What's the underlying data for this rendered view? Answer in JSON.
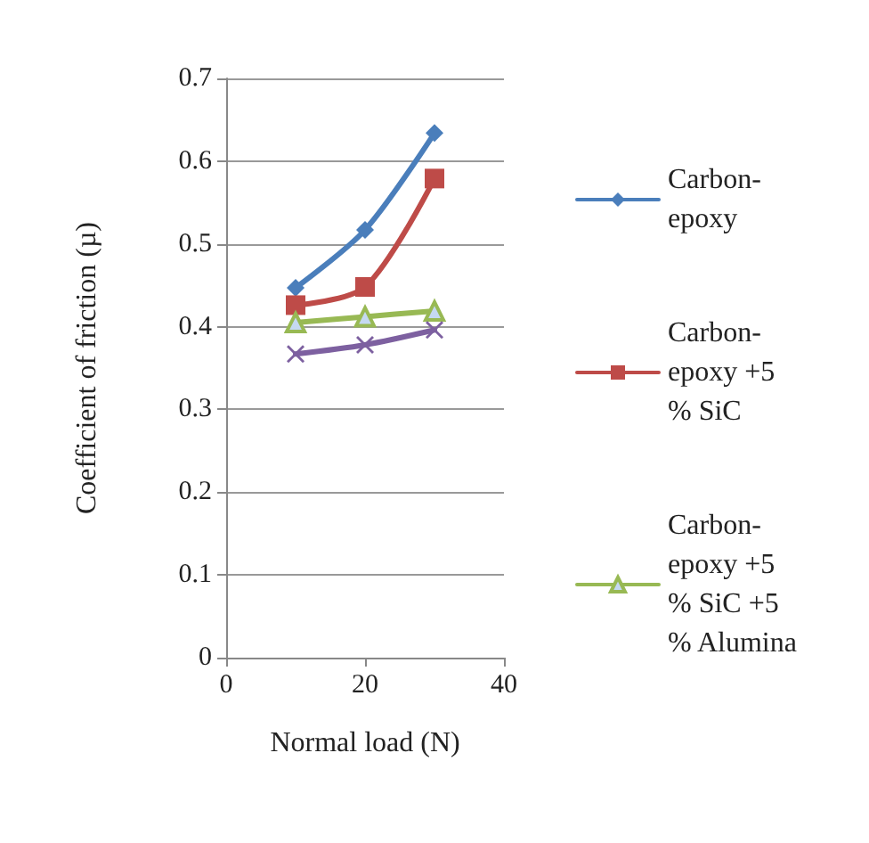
{
  "chart_data": {
    "type": "line",
    "xlabel": "Normal load (N)",
    "ylabel": "Coefficient of friction (µ)",
    "x": [
      10,
      20,
      30
    ],
    "xlim": [
      0,
      40
    ],
    "xticks": [
      0,
      20,
      40
    ],
    "ylim": [
      0,
      0.7
    ],
    "yticks": [
      0,
      0.1,
      0.2,
      0.3,
      0.4,
      0.5,
      0.6,
      0.7
    ],
    "grid": "y",
    "legend": "right",
    "series": [
      {
        "name": "Carbon-\nepoxy",
        "color": "#4a7ebb",
        "marker": "diamond",
        "values": [
          0.447,
          0.517,
          0.634
        ]
      },
      {
        "name": "Carbon-\nepoxy +5\n% SiC",
        "color": "#be4b48",
        "marker": "square",
        "values": [
          0.426,
          0.448,
          0.579
        ]
      },
      {
        "name": "Carbon-\nepoxy +5\n% SiC +5\n% Alumina",
        "color": "#98b954",
        "marker": "triangle",
        "values": [
          0.405,
          0.412,
          0.419
        ]
      },
      {
        "color": "#7d60a0",
        "marker": "cross",
        "values": [
          0.367,
          0.378,
          0.396
        ]
      }
    ]
  }
}
